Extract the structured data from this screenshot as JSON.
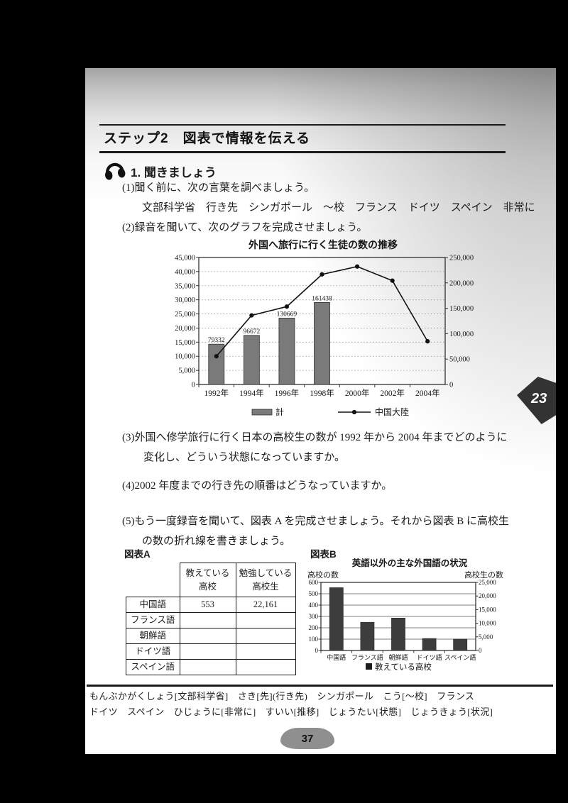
{
  "header": {
    "step_title": "ステップ2　図表で情報を伝える"
  },
  "listening": {
    "heading": "1. 聞きましょう",
    "q1": "(1)聞く前に、次の言葉を調べましょう。",
    "q1_words": "文部科学省　行き先　シンガポール　～校　フランス　ドイツ　スペイン　非常に",
    "q2": "(2)録音を聞いて、次のグラフを完成させましょう。",
    "q3_line1": "(3)外国へ修学旅行に行く日本の高校生の数が 1992 年から 2004 年までどのように",
    "q3_line2": "変化し、どういう状態になっていますか。",
    "q4": "(4)2002 年度までの行き先の順番はどうなっていますか。",
    "q5_line1": "(5)もう一度録音を聞いて、図表 A を完成させましょう。それから図表 B に高校生",
    "q5_line2": "の数の折れ線を書きましょう。"
  },
  "figures": {
    "a_label": "図表A",
    "b_label": "図表B"
  },
  "table_a": {
    "col_headers": [
      "教えている\n高校",
      "勉強している\n高校生"
    ],
    "rows": [
      {
        "label": "中国語",
        "schools": "553",
        "students": "22,161"
      },
      {
        "label": "フランス語",
        "schools": "",
        "students": ""
      },
      {
        "label": "朝鮮語",
        "schools": "",
        "students": ""
      },
      {
        "label": "ドイツ語",
        "schools": "",
        "students": ""
      },
      {
        "label": "スペイン語",
        "schools": "",
        "students": ""
      }
    ]
  },
  "footer": {
    "vocab_line1": "もんぶかがくしょう[文部科学省]　さき[先](行き先)　シンガポール　こう[～校]　フランス",
    "vocab_line2": "ドイツ　スペイン　ひじょうに[非常に]　すいい[推移]　じょうたい[状態]　じょうきょう[状況]",
    "page_tab": "23",
    "page_number": "37"
  },
  "chart_data": [
    {
      "type": "bar+line",
      "title": "外国へ旅行に行く生徒の数の推移",
      "categories": [
        "1992年",
        "1994年",
        "1996年",
        "1998年",
        "2000年",
        "2002年",
        "2004年"
      ],
      "left_axis": {
        "min": 0,
        "max": 45000,
        "step": 5000,
        "ticks": [
          "0",
          "5,000",
          "10,000",
          "15,000",
          "20,000",
          "25,000",
          "30,000",
          "35,000",
          "40,000",
          "45,000"
        ]
      },
      "right_axis": {
        "min": 0,
        "max": 250000,
        "step": 50000,
        "ticks": [
          "0",
          "50,000",
          "100,000",
          "150,000",
          "200,000",
          "250,000"
        ]
      },
      "series": [
        {
          "name": "計",
          "type": "bar",
          "axis": "right",
          "color": "#7a7a7a",
          "values": [
            79332,
            96672,
            130669,
            161438,
            null,
            null,
            null
          ],
          "bar_labels": [
            "79332",
            "96672",
            "130669",
            "161438",
            "",
            "",
            ""
          ]
        },
        {
          "name": "中国大陸",
          "type": "line",
          "axis": "left",
          "color": "#111111",
          "values": [
            10000,
            24500,
            27600,
            39000,
            41800,
            36800,
            15300
          ]
        }
      ],
      "grid": "dotted-horizontal",
      "legend_position": "bottom"
    },
    {
      "type": "bar",
      "title": "英語以外の主な外国語の状況",
      "left_axis_label": "高校の数",
      "right_axis_label": "高校生の数",
      "categories": [
        "中国語",
        "フランス語",
        "朝鮮語",
        "ドイツ語",
        "スペイン語"
      ],
      "values": [
        553,
        248,
        285,
        105,
        100
      ],
      "left_axis": {
        "min": 0,
        "max": 600,
        "step": 100,
        "ticks": [
          "0",
          "100",
          "200",
          "300",
          "400",
          "500",
          "600"
        ]
      },
      "right_axis": {
        "min": 0,
        "max": 25000,
        "step": 5000,
        "ticks": [
          "0",
          "5,000",
          "10,000",
          "15,000",
          "20,000",
          "25,000"
        ]
      },
      "legend": "教えている高校",
      "bar_color": "#3d3d3d",
      "grid": "solid-horizontal",
      "legend_position": "bottom"
    }
  ]
}
